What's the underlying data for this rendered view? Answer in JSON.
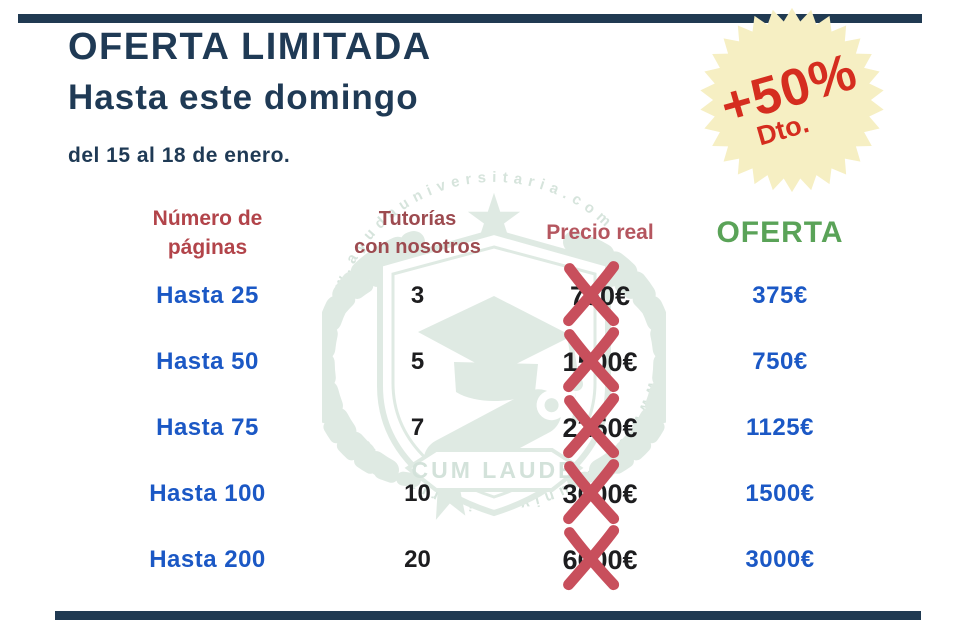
{
  "colors": {
    "navy_bar": "#203a52",
    "title_navy": "#1f3a55",
    "row_blue": "#1b58c5",
    "price_black": "#1d1d1f",
    "header_red_pages": "#b2444a",
    "header_red_tutoring": "#9d4b50",
    "header_red_price": "#b5565f",
    "header_green_offer": "#5aa358",
    "cross_red": "#c84f5c",
    "badge_bg": "#f6efc3",
    "badge_text": "#d52d1f",
    "watermark_green": "#dfeae3"
  },
  "header": {
    "title": "OFERTA LIMITADA",
    "subtitle": "Hasta este domingo",
    "dates": "del 15 al 18 de enero."
  },
  "badge": {
    "discount": "+50%",
    "label": "Dto."
  },
  "watermark": {
    "brand": "CUM LAUDE",
    "url": "www.ayudauniversitaria.com"
  },
  "table": {
    "headers": {
      "pages_line1": "Número de",
      "pages_line2": "páginas",
      "tutoring_line1": "Tutorías",
      "tutoring_line2": "con nosotros",
      "real_price": "Precio real",
      "offer": "OFERTA"
    },
    "rows": [
      {
        "pages": "Hasta 25",
        "tutoring": "3",
        "real_price": "750€",
        "offer": "375€"
      },
      {
        "pages": "Hasta 50",
        "tutoring": "5",
        "real_price": "1500€",
        "offer": "750€"
      },
      {
        "pages": "Hasta 75",
        "tutoring": "7",
        "real_price": "2250€",
        "offer": "1125€"
      },
      {
        "pages": "Hasta 100",
        "tutoring": "10",
        "real_price": "3000€",
        "offer": "1500€"
      },
      {
        "pages": "Hasta 200",
        "tutoring": "20",
        "real_price": "6000€",
        "offer": "3000€"
      }
    ]
  }
}
